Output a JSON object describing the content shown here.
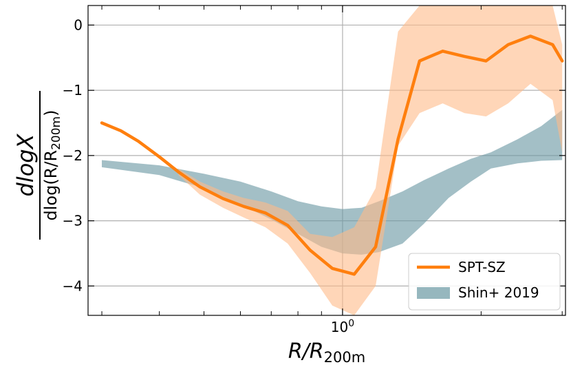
{
  "chart_data": {
    "type": "line",
    "xscale": "log",
    "xlim": [
      0.28,
      3.05
    ],
    "ylim": [
      -4.45,
      0.3
    ],
    "grid": true,
    "legend_position": "lower-right",
    "xlabel": {
      "main": "R/R",
      "sub": "200m"
    },
    "ylabel": {
      "numerator": "dlogX",
      "denominator_main": "dlog(R/R",
      "denominator_sub": "200m",
      "denominator_close": ")"
    },
    "yticks": [
      0,
      -1,
      -2,
      -3,
      -4
    ],
    "ytick_labels": [
      "0",
      "−1",
      "−2",
      "−3",
      "−4"
    ],
    "xtick_major": 1.0,
    "xtick_major_label": {
      "base": "10",
      "exp": "0"
    },
    "xtick_minor": [
      0.3,
      0.4,
      0.5,
      0.6,
      0.7,
      0.8,
      0.9,
      2,
      3
    ],
    "series": [
      {
        "name": "SPT-SZ",
        "kind": "line",
        "color": "#ff7f0e",
        "x": [
          0.3,
          0.33,
          0.36,
          0.4,
          0.44,
          0.49,
          0.55,
          0.61,
          0.68,
          0.76,
          0.85,
          0.95,
          1.06,
          1.18,
          1.32,
          1.47,
          1.65,
          1.84,
          2.05,
          2.29,
          2.56,
          2.86,
          3.0
        ],
        "y": [
          -1.5,
          -1.62,
          -1.78,
          -2.02,
          -2.25,
          -2.48,
          -2.66,
          -2.78,
          -2.88,
          -3.07,
          -3.45,
          -3.73,
          -3.82,
          -3.4,
          -1.75,
          -0.55,
          -0.4,
          -0.48,
          -0.55,
          -0.3,
          -0.17,
          -0.3,
          -0.55
        ]
      },
      {
        "name": "SPT-SZ band",
        "kind": "band",
        "color": "#ffbb88",
        "x": [
          0.44,
          0.49,
          0.55,
          0.61,
          0.68,
          0.76,
          0.85,
          0.95,
          1.06,
          1.18,
          1.32,
          1.47,
          1.65,
          1.84,
          2.05,
          2.29,
          2.56,
          2.86,
          3.0
        ],
        "upper": [
          -2.2,
          -2.4,
          -2.55,
          -2.65,
          -2.72,
          -2.85,
          -3.2,
          -3.25,
          -3.1,
          -2.5,
          -0.1,
          0.3,
          0.3,
          0.3,
          0.3,
          0.3,
          0.3,
          0.3,
          -0.3
        ],
        "lower": [
          -2.3,
          -2.6,
          -2.8,
          -2.95,
          -3.1,
          -3.35,
          -3.8,
          -4.3,
          -4.45,
          -4.0,
          -1.85,
          -1.35,
          -1.2,
          -1.35,
          -1.4,
          -1.2,
          -0.9,
          -1.15,
          -1.95
        ]
      },
      {
        "name": "Shin+ 2019",
        "kind": "band",
        "color": "#6a98a3",
        "x": [
          0.3,
          0.4,
          0.5,
          0.6,
          0.7,
          0.8,
          0.9,
          1.0,
          1.1,
          1.2,
          1.35,
          1.5,
          1.7,
          1.9,
          2.1,
          2.4,
          2.7,
          3.0
        ],
        "upper": [
          -2.07,
          -2.15,
          -2.28,
          -2.4,
          -2.55,
          -2.7,
          -2.78,
          -2.82,
          -2.8,
          -2.7,
          -2.55,
          -2.38,
          -2.2,
          -2.05,
          -1.95,
          -1.75,
          -1.55,
          -1.3
        ],
        "lower": [
          -2.18,
          -2.3,
          -2.5,
          -2.75,
          -2.98,
          -3.2,
          -3.4,
          -3.5,
          -3.52,
          -3.48,
          -3.35,
          -3.05,
          -2.65,
          -2.4,
          -2.2,
          -2.12,
          -2.08,
          -2.07
        ]
      }
    ],
    "legend": [
      {
        "label": "SPT-SZ",
        "style": "line",
        "color": "#ff7f0e"
      },
      {
        "label": "Shin+ 2019",
        "style": "patch",
        "color": "#6a98a3"
      }
    ]
  }
}
